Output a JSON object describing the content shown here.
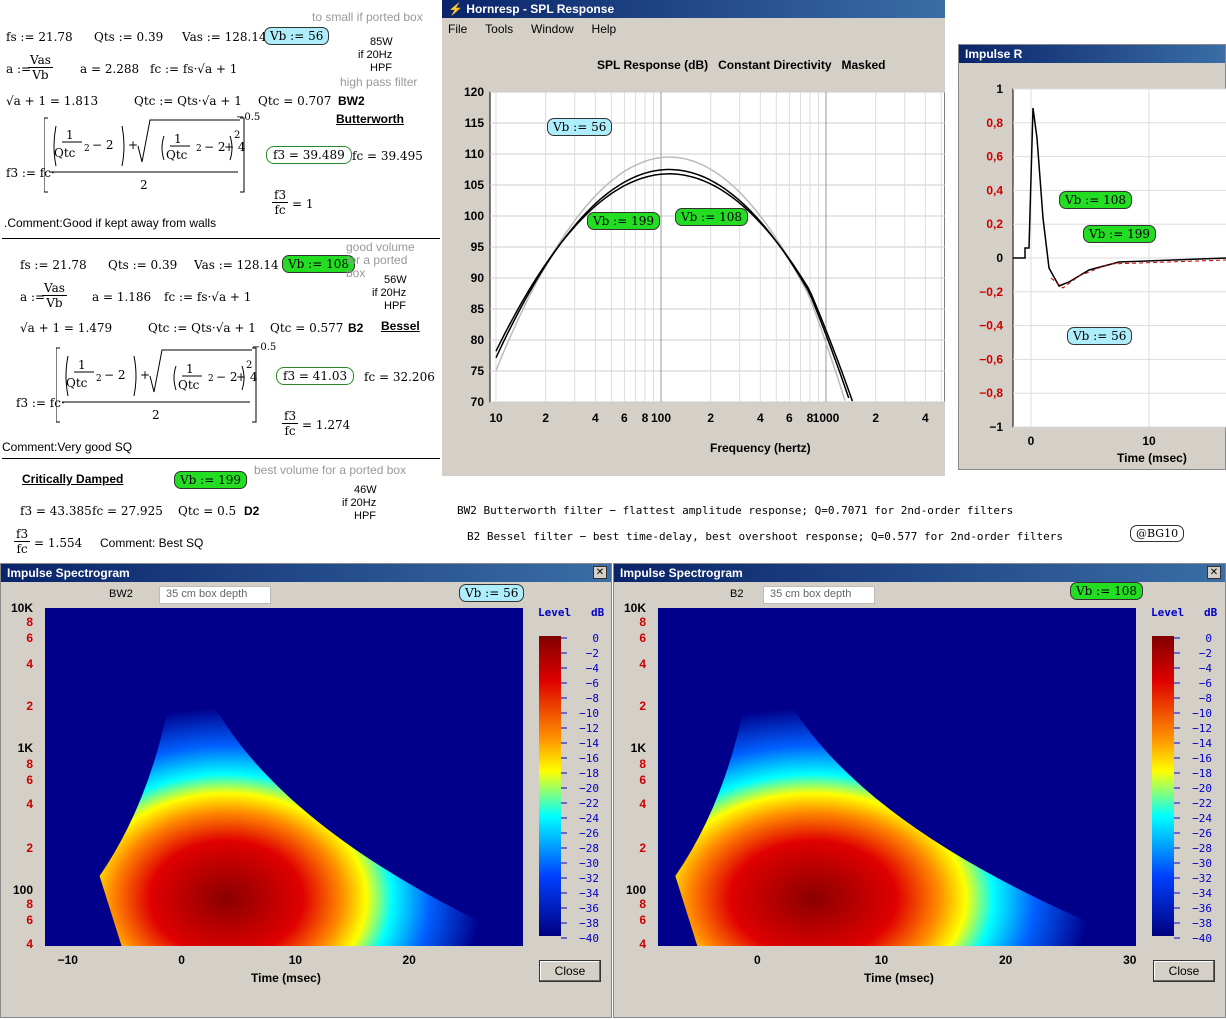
{
  "top": {
    "b1": {
      "fs": "fs := 21.78",
      "qts": "Qts := 0.39",
      "vas": "Vas := 128.14",
      "vb": "Vb := 56",
      "note": "to small if ported box",
      "a_def": "a :=",
      "vas_n": "Vas",
      "vb_d": "Vb",
      "a_val": "a = 2.288",
      "fc_def": "fc := fs·√a + 1",
      "w": "85W",
      "w2": "if 20Hz",
      "w3": "HPF",
      "hpf": "high pass filter",
      "sq": "√a + 1 = 1.813",
      "qtc_def": "Qtc := Qts·√a + 1",
      "qtc": "Qtc = 0.707",
      "type": "BW2",
      "name": "Butterworth",
      "f3def": "f3 := fc·",
      "f3": "f3 = 39.489",
      "fc": "fc = 39.495",
      "exp": "−0.5",
      "two": "2",
      "ratio_n": "f3",
      "ratio_d": "fc",
      "ratio": "= 1",
      "comment": ".Comment:Good if kept away from walls"
    },
    "b2": {
      "fs": "fs := 21.78",
      "qts": "Qts := 0.39",
      "vas": "Vas := 128.14",
      "vb": "Vb := 108",
      "note1": "good volume",
      "note2": "for a ported",
      "note3": "box",
      "a_def": "a :=",
      "vas_n": "Vas",
      "vb_d": "Vb",
      "a_val": "a = 1.186",
      "fc_def": "fc := fs·√a + 1",
      "w": "56W",
      "w2": "if 20Hz",
      "w3": "HPF",
      "sq": "√a + 1 = 1.479",
      "qtc_def": "Qtc := Qts·√a + 1",
      "qtc": "Qtc = 0.577",
      "type": "B2",
      "name": "Bessel",
      "f3def": "f3 := fc·",
      "f3": "f3 = 41.03",
      "fc": "fc = 32.206",
      "exp": "−0.5",
      "two": "2",
      "ratio_n": "f3",
      "ratio_d": "fc",
      "ratio": "= 1.274",
      "comment": "Comment:Very good SQ"
    },
    "b3": {
      "name": "Critically Damped",
      "vb": "Vb := 199",
      "note": "best volume for a ported box",
      "w": "46W",
      "w2": "if 20Hz",
      "w3": "HPF",
      "f3": "f3 = 43.385",
      "fc": "fc = 27.925",
      "qtc": "Qtc = 0.5",
      "type": "D2",
      "ratio_n": "f3",
      "ratio_d": "fc",
      "ratio": "= 1.554",
      "comment": "Comment: Best SQ"
    },
    "formula": {
      "one": "1",
      "qtc2": "Qtc",
      "sup2": "2",
      "minus2": "− 2",
      "plus": "+",
      "plus4": "+ 4",
      "exp2": "2"
    }
  },
  "spl": {
    "title": "Hornresp - SPL Response",
    "menu": [
      "File",
      "Tools",
      "Window",
      "Help"
    ],
    "heading": "SPL Response (dB)   Constant Directivity   Masked",
    "xlabel": "Frequency (hertz)",
    "yticks": [
      "120",
      "115",
      "110",
      "105",
      "100",
      "95",
      "90",
      "85",
      "80",
      "75",
      "70"
    ],
    "xticks": [
      "10",
      "2",
      "4",
      "6",
      "8",
      "100",
      "2",
      "4",
      "6",
      "8",
      "1000",
      "2",
      "4"
    ],
    "labels": {
      "vb56": "Vb := 56",
      "vb199": "Vb := 199",
      "vb108": "Vb := 108"
    }
  },
  "imp": {
    "title": "Impulse R",
    "yticks": [
      "1",
      "0,8",
      "0,6",
      "0,4",
      "0,2",
      "0",
      "−0,2",
      "−0,4",
      "−0,6",
      "−0,8",
      "−1"
    ],
    "xticks": [
      "0",
      "10"
    ],
    "xlabel": "Time (msec)",
    "labels": {
      "vb108": "Vb := 108",
      "vb199": "Vb := 199",
      "vb56": "Vb := 56"
    }
  },
  "notes": {
    "bw2": "BW2  Butterworth filter − flattest amplitude response; Q=0.7071 for 2nd-order filters",
    "b2": "B2  Bessel filter − best time-delay, best overshoot response; Q=0.577 for 2nd-order filters",
    "tag": "@BG10"
  },
  "spec1": {
    "title": "Impulse Spectrogram",
    "type": "BW2",
    "depth": "35 cm box depth",
    "vb": "Vb := 56",
    "level": "Level   dB",
    "yticks": [
      "10K",
      "8",
      "6",
      "4",
      "2",
      "1K",
      "8",
      "6",
      "4",
      "2",
      "100",
      "8",
      "6",
      "4"
    ],
    "xticks": [
      "−10",
      "0",
      "10",
      "20"
    ],
    "xlabel": "Time (msec)",
    "close": "Close",
    "scale": [
      "0",
      "−2",
      "−4",
      "−6",
      "−8",
      "−10",
      "−12",
      "−14",
      "−16",
      "−18",
      "−20",
      "−22",
      "−24",
      "−26",
      "−28",
      "−30",
      "−32",
      "−34",
      "−36",
      "−38",
      "−40"
    ]
  },
  "spec2": {
    "title": "Impulse Spectrogram",
    "type": "B2",
    "depth": "35 cm box depth",
    "vb": "Vb := 108",
    "level": "Level   dB",
    "yticks": [
      "10K",
      "8",
      "6",
      "4",
      "2",
      "1K",
      "8",
      "6",
      "4",
      "2",
      "100",
      "8",
      "6",
      "4"
    ],
    "xticks": [
      "0",
      "10",
      "20",
      "30"
    ],
    "xlabel": "Time (msec)",
    "close": "Close",
    "scale": [
      "0",
      "−2",
      "−4",
      "−6",
      "−8",
      "−10",
      "−12",
      "−14",
      "−16",
      "−18",
      "−20",
      "−22",
      "−24",
      "−26",
      "−28",
      "−30",
      "−32",
      "−34",
      "−36",
      "−38",
      "−40"
    ]
  }
}
